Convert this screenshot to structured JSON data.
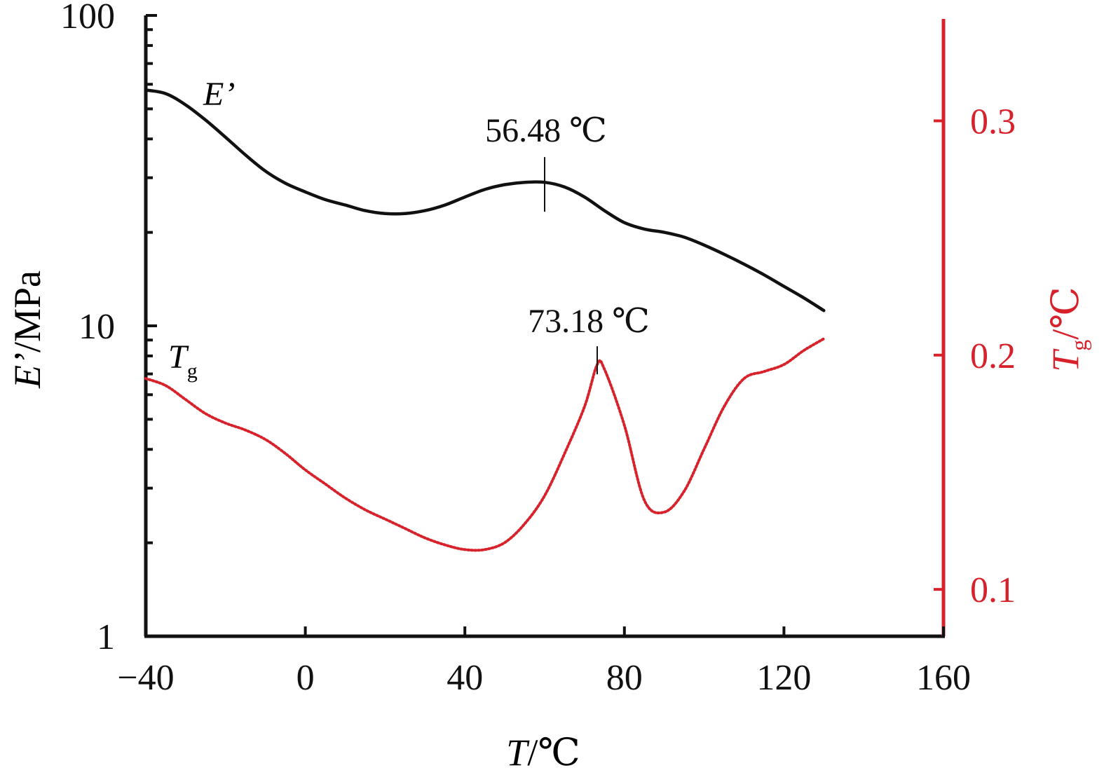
{
  "chart_data": {
    "type": "line",
    "x": {
      "ticks": [
        -40,
        0,
        40,
        80,
        120,
        160
      ],
      "tick_labels": [
        "−40",
        "0",
        "40",
        "80",
        "120",
        "160"
      ],
      "range": [
        -40,
        160
      ],
      "label_var": "T",
      "label_unit": "/℃"
    },
    "y_left": {
      "scale": "log",
      "range": [
        1,
        100
      ],
      "ticks": [
        1,
        10,
        100
      ],
      "tick_labels": [
        "1",
        "10",
        "100"
      ],
      "label_var": "E’",
      "label_unit": "/MPa",
      "color": "#111111"
    },
    "y_right": {
      "scale": "linear",
      "range": [
        0.08,
        0.345
      ],
      "ticks": [
        0.1,
        0.2,
        0.3
      ],
      "tick_labels": [
        "0.1",
        "0.2",
        "0.3"
      ],
      "label_var": "T",
      "label_sub": "g",
      "label_unit": "/℃",
      "color": "#d7222c"
    },
    "series": [
      {
        "name_var": "E’",
        "axis": "left",
        "color": "#111111",
        "style": "solid",
        "x": [
          -40,
          -35,
          -30,
          -25,
          -20,
          -15,
          -10,
          -5,
          0,
          5,
          10,
          15,
          20,
          25,
          30,
          35,
          40,
          45,
          50,
          55,
          60,
          65,
          70,
          75,
          80,
          85,
          90,
          95,
          100,
          105,
          110,
          115,
          120,
          125,
          130
        ],
        "y": [
          57.5,
          56.0,
          51.5,
          46.0,
          40.5,
          35.5,
          31.5,
          28.8,
          27.0,
          25.5,
          24.5,
          23.5,
          23.0,
          23.0,
          23.5,
          24.5,
          26.0,
          27.5,
          28.5,
          29.0,
          29.0,
          28.0,
          26.0,
          23.5,
          21.5,
          20.5,
          20.0,
          19.3,
          18.2,
          17.0,
          15.8,
          14.6,
          13.4,
          12.3,
          11.2
        ]
      },
      {
        "name_var": "T",
        "name_sub": "g",
        "axis": "right",
        "color": "#d7222c",
        "style": "dotted",
        "x": [
          -40,
          -35,
          -30,
          -25,
          -20,
          -15,
          -10,
          -5,
          0,
          5,
          10,
          15,
          20,
          25,
          30,
          35,
          40,
          45,
          50,
          55,
          60,
          65,
          70,
          73.18,
          75,
          80,
          85,
          90,
          95,
          100,
          105,
          110,
          115,
          120,
          125,
          130
        ],
        "y": [
          0.19,
          0.187,
          0.181,
          0.175,
          0.171,
          0.168,
          0.164,
          0.158,
          0.151,
          0.145,
          0.139,
          0.134,
          0.13,
          0.126,
          0.122,
          0.119,
          0.117,
          0.117,
          0.12,
          0.128,
          0.14,
          0.158,
          0.178,
          0.196,
          0.194,
          0.17,
          0.138,
          0.133,
          0.142,
          0.16,
          0.178,
          0.19,
          0.193,
          0.196,
          0.202,
          0.207
        ]
      }
    ],
    "annotations": [
      {
        "text": "56.48 ℃",
        "series": "E’",
        "x": 60,
        "y": 29.0
      },
      {
        "text": "73.18 ℃",
        "series": "Tg",
        "x": 73.18,
        "y": 0.196
      }
    ]
  }
}
